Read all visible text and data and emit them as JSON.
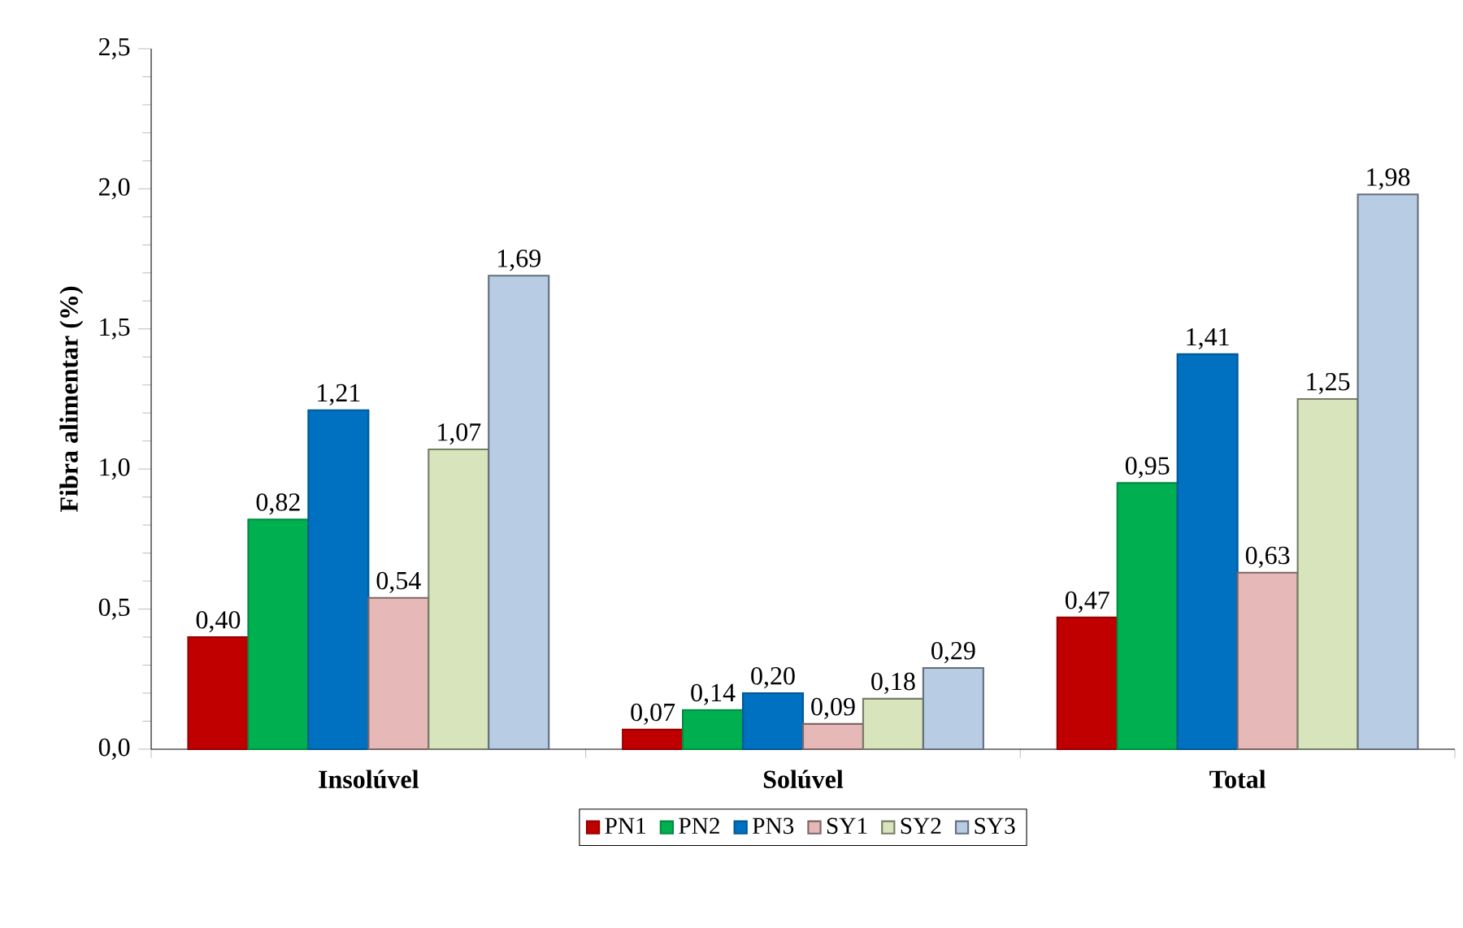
{
  "chart_data": {
    "type": "bar",
    "ylabel": "Fibra alimentar (%)",
    "categories": [
      "Insolúvel",
      "Solúvel",
      "Total"
    ],
    "series": [
      {
        "name": "PN1",
        "color": "#c00000",
        "values": [
          0.4,
          0.07,
          0.47
        ],
        "value_labels": [
          "0,40",
          "0,07",
          "0,47"
        ]
      },
      {
        "name": "PN2",
        "color": "#00b050",
        "values": [
          0.82,
          0.14,
          0.95
        ],
        "value_labels": [
          "0,82",
          "0,14",
          "0,95"
        ]
      },
      {
        "name": "PN3",
        "color": "#0070c0",
        "values": [
          1.21,
          0.2,
          1.41
        ],
        "value_labels": [
          "1,21",
          "0,20",
          "1,41"
        ]
      },
      {
        "name": "SY1",
        "color": "#e6b8b7",
        "values": [
          0.54,
          0.09,
          0.63
        ],
        "value_labels": [
          "0,54",
          "0,09",
          "0,63"
        ]
      },
      {
        "name": "SY2",
        "color": "#d8e4bc",
        "values": [
          1.07,
          0.18,
          1.25
        ],
        "value_labels": [
          "1,07",
          "0,18",
          "1,25"
        ]
      },
      {
        "name": "SY3",
        "color": "#b8cce4",
        "values": [
          1.69,
          0.29,
          1.98
        ],
        "value_labels": [
          "1,69",
          "0,29",
          "1,98"
        ]
      }
    ],
    "ylim": [
      0,
      2.5
    ],
    "yticks": [
      {
        "value": 0,
        "label": "0,0"
      },
      {
        "value": 0.5,
        "label": "0,5"
      },
      {
        "value": 1.0,
        "label": "1,0"
      },
      {
        "value": 1.5,
        "label": "1,5"
      },
      {
        "value": 2.0,
        "label": "2,0"
      },
      {
        "value": 2.5,
        "label": "2,5"
      }
    ],
    "grid": false,
    "legend": "bottom"
  }
}
